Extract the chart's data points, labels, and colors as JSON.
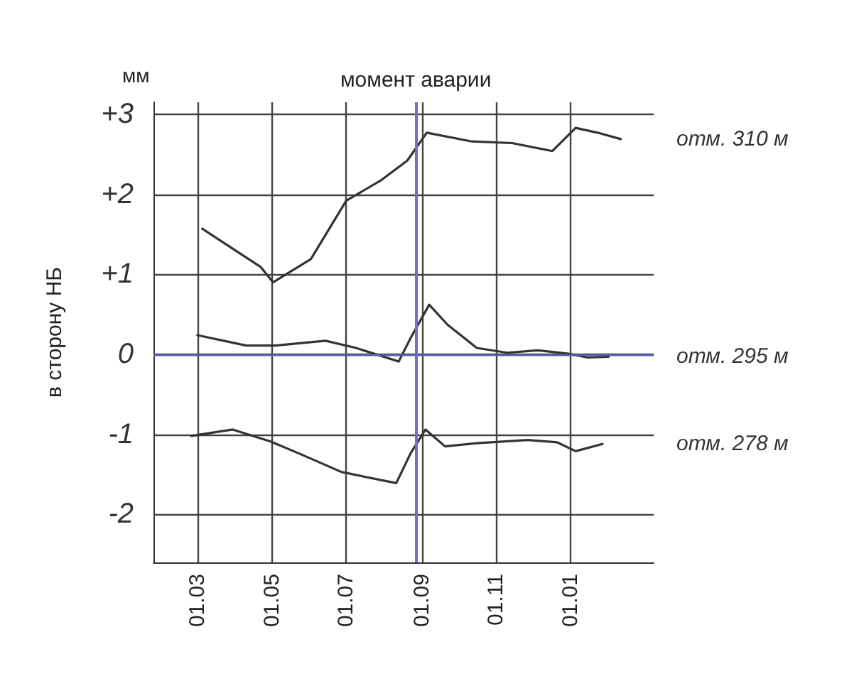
{
  "chart_data": {
    "type": "line",
    "ylabel": "в сторону НБ",
    "annotations": [
      "мм"
    ],
    "xlim": [
      "2009-01-24",
      "2010-03-10"
    ],
    "ylim": [
      -2.6,
      3.15
    ],
    "xticks": [
      {
        "value": "2009-03-01",
        "label": "01.03"
      },
      {
        "value": "2009-05-01",
        "label": "01.05"
      },
      {
        "value": "2009-07-01",
        "label": "01.07"
      },
      {
        "value": "2009-09-01",
        "label": "01.09"
      },
      {
        "value": "2009-11-01",
        "label": "01.11"
      },
      {
        "value": "2010-01-01",
        "label": "01.01"
      }
    ],
    "yticks": [
      {
        "value": -2,
        "label": "-2"
      },
      {
        "value": -1,
        "label": "-1"
      },
      0,
      {
        "value": 1,
        "label": "+1"
      },
      {
        "value": 2,
        "label": "+2"
      },
      {
        "value": 3,
        "label": "+3"
      }
    ],
    "grid": true,
    "legend": false,
    "marker": "none",
    "line_style": "solid",
    "ref_lines": [
      {
        "axis": "y",
        "value": 0,
        "color": "#5a5ab0"
      },
      {
        "axis": "x",
        "value": "2009-08-27",
        "label": "момент аварии",
        "color": "#7070c0"
      }
    ],
    "series": [
      {
        "name": "отм. 310 м",
        "color": "#333333",
        "x": [
          "2009-03-05",
          "2009-04-06",
          "2009-04-22",
          "2009-05-02",
          "2009-06-02",
          "2009-07-01",
          "2009-07-29",
          "2009-08-20",
          "2009-09-05",
          "2009-10-12",
          "2009-11-14",
          "2009-12-17",
          "2010-01-05",
          "2010-01-23",
          "2010-02-11"
        ],
        "values": [
          1.57,
          1.25,
          1.09,
          0.9,
          1.19,
          1.92,
          2.17,
          2.42,
          2.77,
          2.66,
          2.64,
          2.54,
          2.83,
          2.77,
          2.69
        ]
      },
      {
        "name": "отм. 295 м",
        "color": "#333333",
        "x": [
          "2009-03-01",
          "2009-04-10",
          "2009-05-04",
          "2009-06-14",
          "2009-07-09",
          "2009-08-13",
          "2009-08-23",
          "2009-09-07",
          "2009-09-22",
          "2009-10-16",
          "2009-11-10",
          "2009-12-05",
          "2009-12-29",
          "2010-01-15",
          "2010-02-01"
        ],
        "values": [
          0.24,
          0.11,
          0.11,
          0.17,
          0.08,
          -0.09,
          0.21,
          0.62,
          0.37,
          0.08,
          0.02,
          0.05,
          0.01,
          -0.04,
          -0.03
        ]
      },
      {
        "name": "отм. 278 м",
        "color": "#333333",
        "x": [
          "2009-02-24",
          "2009-03-30",
          "2009-04-30",
          "2009-05-25",
          "2009-06-27",
          "2009-08-11",
          "2009-08-23",
          "2009-09-04",
          "2009-09-20",
          "2009-10-16",
          "2009-11-27",
          "2009-12-21",
          "2010-01-05",
          "2010-01-27"
        ],
        "values": [
          -1.02,
          -0.94,
          -1.09,
          -1.25,
          -1.47,
          -1.61,
          -1.23,
          -0.94,
          -1.15,
          -1.11,
          -1.07,
          -1.1,
          -1.21,
          -1.12
        ]
      }
    ]
  }
}
